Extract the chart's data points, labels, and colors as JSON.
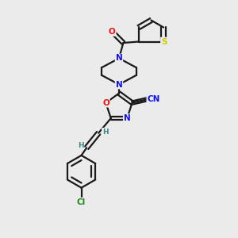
{
  "bg_color": "#ebebeb",
  "bond_color": "#1a1a1a",
  "atom_colors": {
    "N": "#1010ee",
    "O": "#ee1010",
    "S": "#cccc00",
    "Cl": "#228822",
    "C": "#1a1a1a",
    "H": "#3a8888"
  },
  "figsize": [
    3.0,
    3.0
  ],
  "dpi": 100,
  "lw": 1.6
}
